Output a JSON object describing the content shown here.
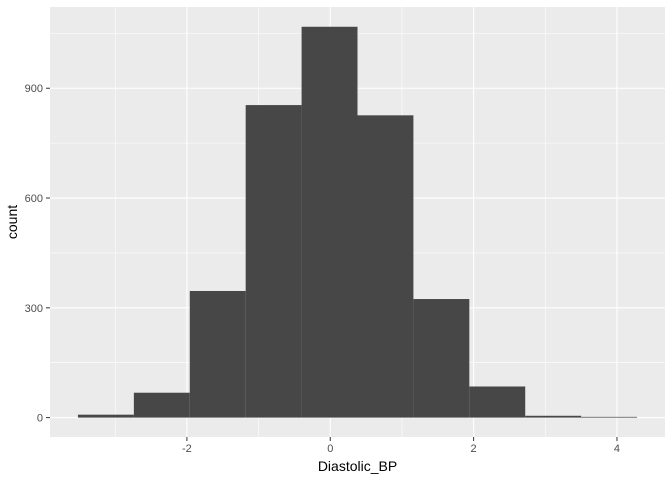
{
  "chart_data": {
    "type": "bar",
    "subtype": "histogram",
    "title": "",
    "xlabel": "Diastolic_BP",
    "ylabel": "count",
    "bins": [
      {
        "x0": -3.52,
        "x1": -2.74,
        "count": 8
      },
      {
        "x0": -2.74,
        "x1": -1.96,
        "count": 68
      },
      {
        "x0": -1.96,
        "x1": -1.18,
        "count": 346
      },
      {
        "x0": -1.18,
        "x1": -0.4,
        "count": 854
      },
      {
        "x0": -0.4,
        "x1": 0.38,
        "count": 1068
      },
      {
        "x0": 0.38,
        "x1": 1.16,
        "count": 826
      },
      {
        "x0": 1.16,
        "x1": 1.94,
        "count": 324
      },
      {
        "x0": 1.94,
        "x1": 2.72,
        "count": 85
      },
      {
        "x0": 2.72,
        "x1": 3.5,
        "count": 5
      },
      {
        "x0": 3.5,
        "x1": 4.28,
        "count": 2
      }
    ],
    "xlim": [
      -3.91,
      4.67
    ],
    "ylim": [
      -53,
      1122
    ],
    "x_ticks": [
      -2,
      0,
      2,
      4
    ],
    "x_tick_labels": [
      "-2",
      "0",
      "2",
      "4"
    ],
    "y_ticks": [
      0,
      300,
      600,
      900
    ],
    "y_tick_labels": [
      "0",
      "300",
      "600",
      "900"
    ],
    "grid": true,
    "legend": "none",
    "colors": {
      "panel_background": "#ebebeb",
      "grid_major": "#ffffff",
      "bar_fill": "#474747",
      "tick_text": "#4d4d4d",
      "tick_mark": "#333333"
    }
  }
}
